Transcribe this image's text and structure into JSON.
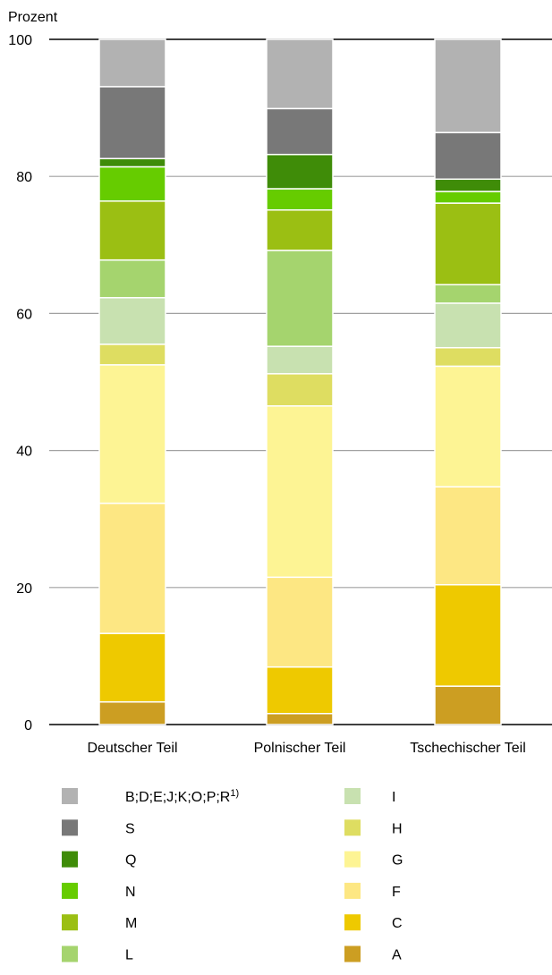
{
  "chart_data": {
    "type": "bar",
    "stacked": true,
    "ylabel": "Prozent",
    "ylim": [
      0,
      100
    ],
    "yticks": [
      0,
      20,
      40,
      60,
      80,
      100
    ],
    "grid": true,
    "legend_position": "bottom",
    "categories": [
      "Deutscher Teil",
      "Polnischer Teil",
      "Tschechischer Teil"
    ],
    "series": [
      {
        "name": "A",
        "color": "#cc9e22",
        "values": [
          3.3,
          1.6,
          5.6
        ]
      },
      {
        "name": "C",
        "color": "#eec900",
        "values": [
          10.0,
          6.8,
          14.8
        ]
      },
      {
        "name": "F",
        "color": "#fde783",
        "values": [
          19.0,
          13.1,
          14.3
        ]
      },
      {
        "name": "G",
        "color": "#fdf494",
        "values": [
          20.2,
          25.0,
          17.6
        ]
      },
      {
        "name": "H",
        "color": "#dedd61",
        "values": [
          3.0,
          4.7,
          2.7
        ]
      },
      {
        "name": "I",
        "color": "#c8e1b0",
        "values": [
          6.8,
          4.0,
          6.5
        ]
      },
      {
        "name": "L",
        "color": "#a5d46e",
        "values": [
          5.5,
          14.0,
          2.7
        ]
      },
      {
        "name": "M",
        "color": "#9bbf13",
        "values": [
          8.6,
          5.9,
          11.9
        ]
      },
      {
        "name": "N",
        "color": "#66cc00",
        "values": [
          5.0,
          3.1,
          1.7
        ]
      },
      {
        "name": "Q",
        "color": "#3f8c08",
        "values": [
          1.2,
          5.0,
          1.8
        ]
      },
      {
        "name": "S",
        "color": "#787878",
        "values": [
          10.5,
          6.7,
          6.8
        ]
      },
      {
        "name": "B;D;E;J;K;O;P;R",
        "name_sup": "1)",
        "color": "#b2b2b2",
        "values": [
          6.9,
          10.1,
          13.6
        ]
      }
    ],
    "legend_left": [
      "B;D;E;J;K;O;P;R",
      "S",
      "Q",
      "N",
      "M",
      "L"
    ],
    "legend_right": [
      "I",
      "H",
      "G",
      "F",
      "C",
      "A"
    ]
  }
}
